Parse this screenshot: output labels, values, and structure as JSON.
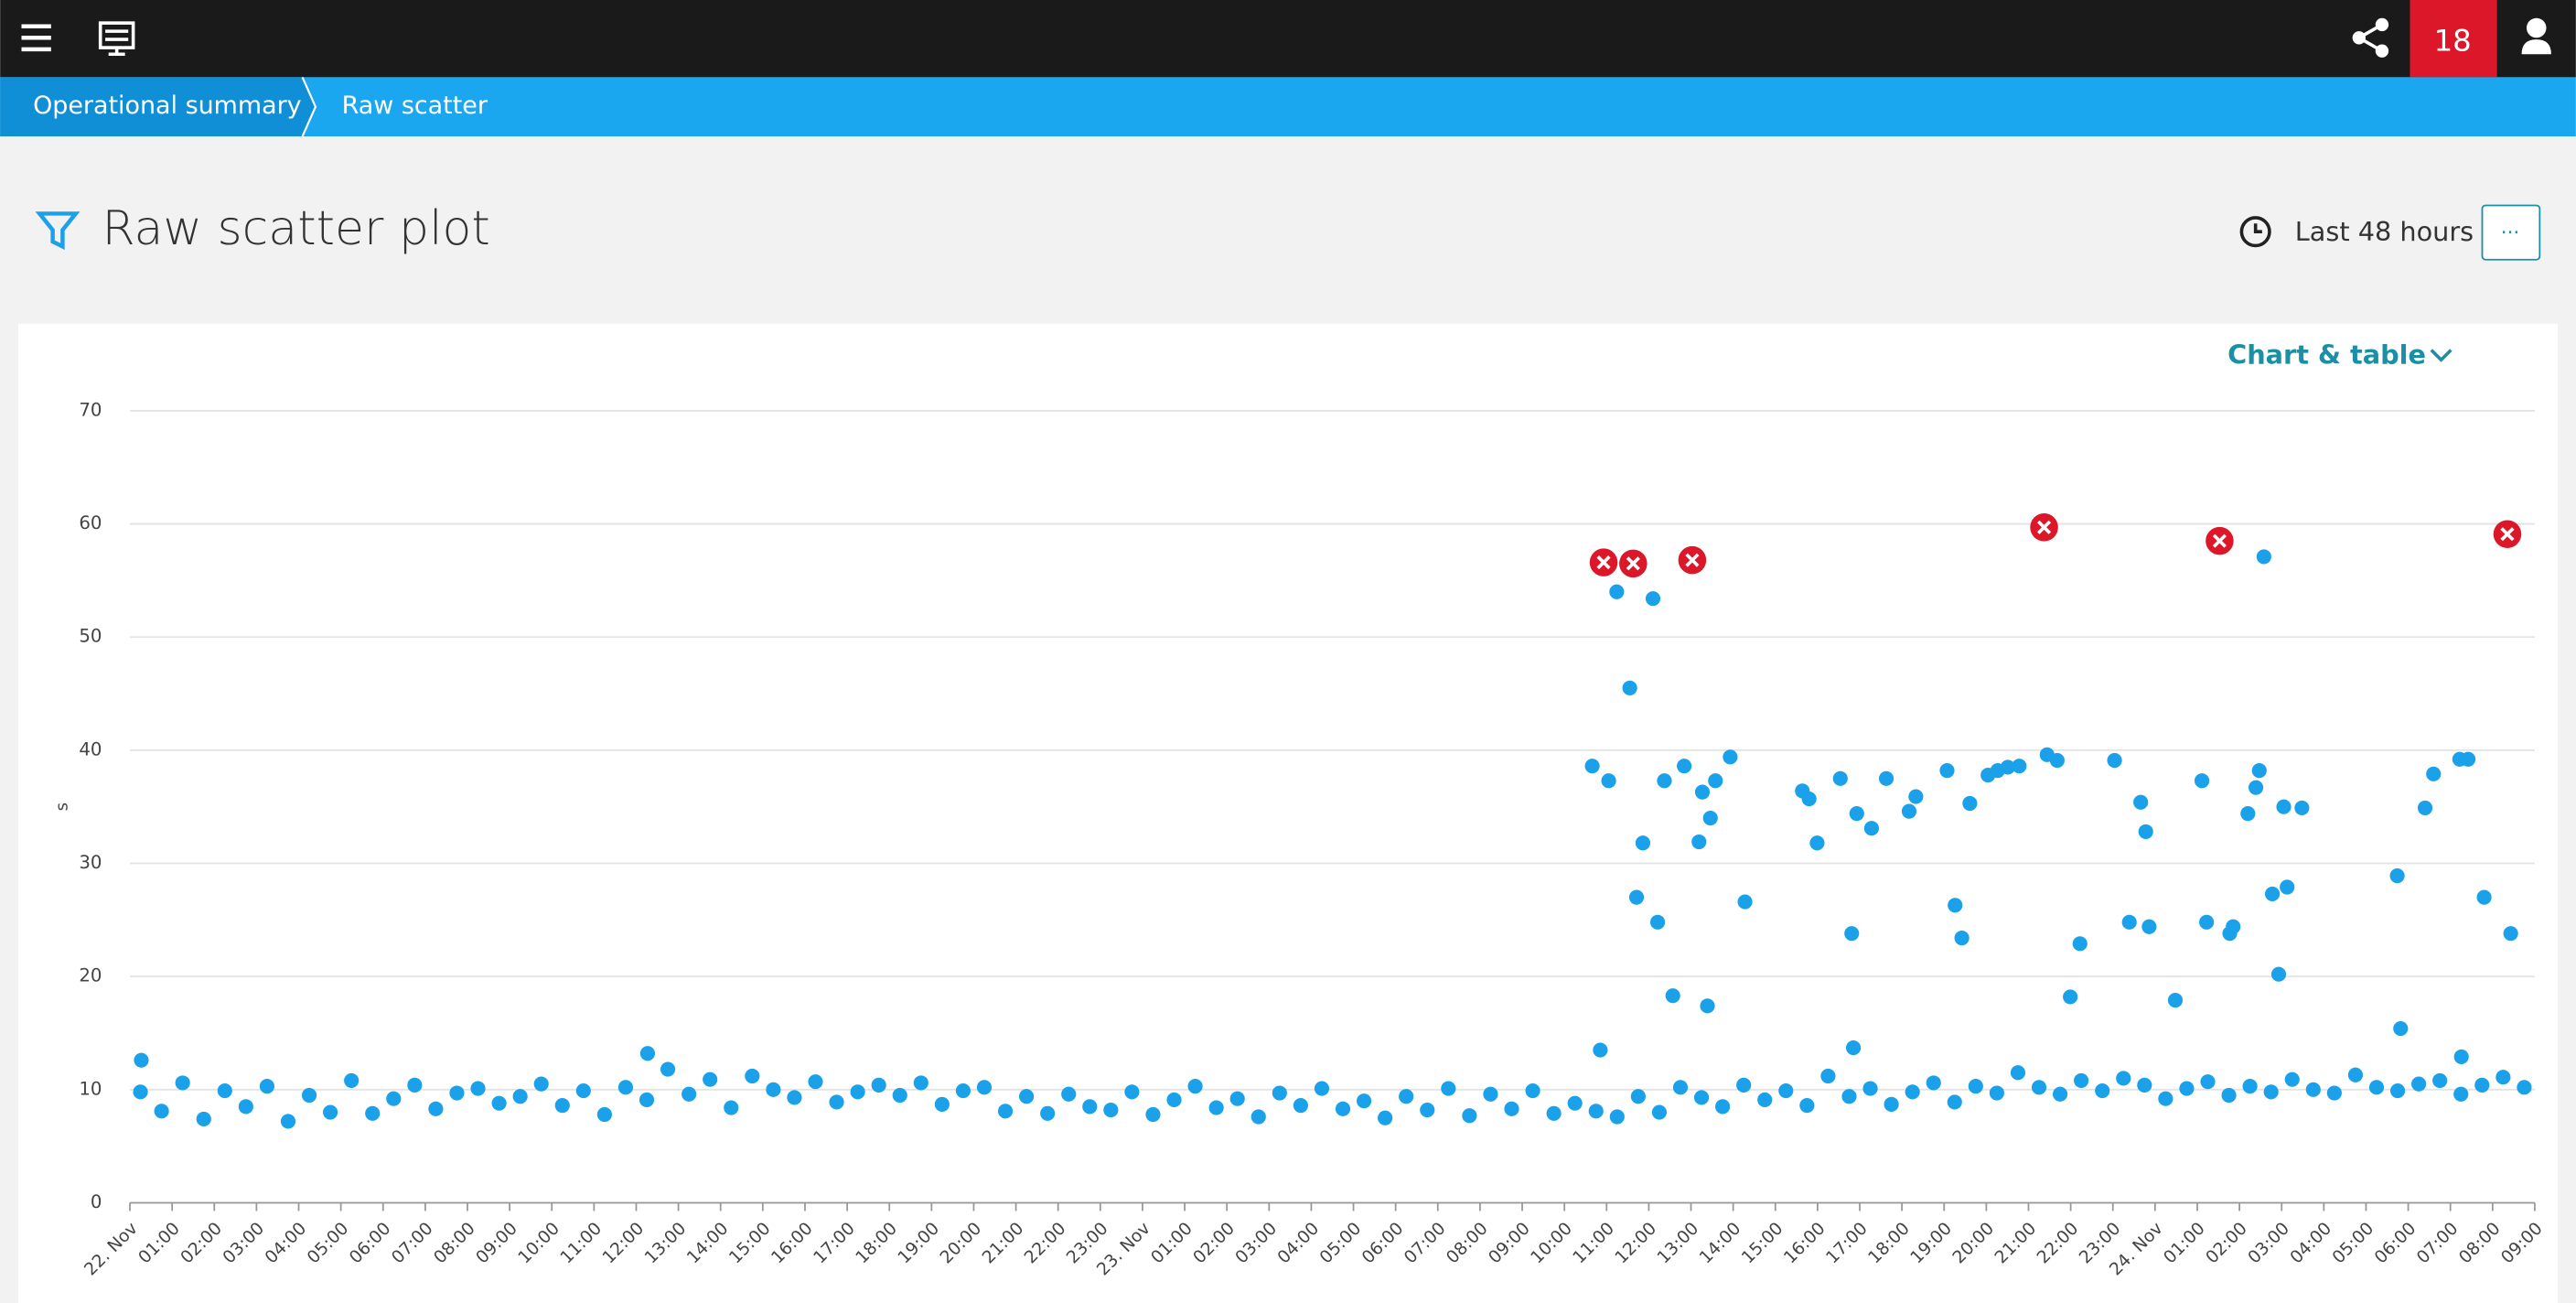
{
  "header": {
    "notification_count": "18"
  },
  "breadcrumb": [
    "Operational summary",
    "Raw scatter"
  ],
  "title": "Raw scatter plot",
  "time_range": "Last 48 hours",
  "menu_button": "···",
  "view_selector": "Chart & table",
  "chart_data": {
    "type": "scatter",
    "y_label": "s",
    "ylim": [
      0,
      70
    ],
    "yticks": [
      0,
      10,
      20,
      30,
      40,
      50,
      60,
      70
    ],
    "xlim": [
      0,
      57
    ],
    "xticks": [
      {
        "value": 0,
        "label": "22. Nov"
      },
      {
        "value": 1,
        "label": "01:00"
      },
      {
        "value": 2,
        "label": "02:00"
      },
      {
        "value": 3,
        "label": "03:00"
      },
      {
        "value": 4,
        "label": "04:00"
      },
      {
        "value": 5,
        "label": "05:00"
      },
      {
        "value": 6,
        "label": "06:00"
      },
      {
        "value": 7,
        "label": "07:00"
      },
      {
        "value": 8,
        "label": "08:00"
      },
      {
        "value": 9,
        "label": "09:00"
      },
      {
        "value": 10,
        "label": "10:00"
      },
      {
        "value": 11,
        "label": "11:00"
      },
      {
        "value": 12,
        "label": "12:00"
      },
      {
        "value": 13,
        "label": "13:00"
      },
      {
        "value": 14,
        "label": "14:00"
      },
      {
        "value": 15,
        "label": "15:00"
      },
      {
        "value": 16,
        "label": "16:00"
      },
      {
        "value": 17,
        "label": "17:00"
      },
      {
        "value": 18,
        "label": "18:00"
      },
      {
        "value": 19,
        "label": "19:00"
      },
      {
        "value": 20,
        "label": "20:00"
      },
      {
        "value": 21,
        "label": "21:00"
      },
      {
        "value": 22,
        "label": "22:00"
      },
      {
        "value": 23,
        "label": "23:00"
      },
      {
        "value": 24,
        "label": "23. Nov"
      },
      {
        "value": 25,
        "label": "01:00"
      },
      {
        "value": 26,
        "label": "02:00"
      },
      {
        "value": 27,
        "label": "03:00"
      },
      {
        "value": 28,
        "label": "04:00"
      },
      {
        "value": 29,
        "label": "05:00"
      },
      {
        "value": 30,
        "label": "06:00"
      },
      {
        "value": 31,
        "label": "07:00"
      },
      {
        "value": 32,
        "label": "08:00"
      },
      {
        "value": 33,
        "label": "09:00"
      },
      {
        "value": 34,
        "label": "10:00"
      },
      {
        "value": 35,
        "label": "11:00"
      },
      {
        "value": 36,
        "label": "12:00"
      },
      {
        "value": 37,
        "label": "13:00"
      },
      {
        "value": 38,
        "label": "14:00"
      },
      {
        "value": 39,
        "label": "15:00"
      },
      {
        "value": 40,
        "label": "16:00"
      },
      {
        "value": 41,
        "label": "17:00"
      },
      {
        "value": 42,
        "label": "18:00"
      },
      {
        "value": 43,
        "label": "19:00"
      },
      {
        "value": 44,
        "label": "20:00"
      },
      {
        "value": 45,
        "label": "21:00"
      },
      {
        "value": 46,
        "label": "22:00"
      },
      {
        "value": 47,
        "label": "23:00"
      },
      {
        "value": 48,
        "label": "24. Nov"
      },
      {
        "value": 49,
        "label": "01:00"
      },
      {
        "value": 50,
        "label": "02:00"
      },
      {
        "value": 51,
        "label": "03:00"
      },
      {
        "value": 52,
        "label": "04:00"
      },
      {
        "value": 53,
        "label": "05:00"
      },
      {
        "value": 54,
        "label": "06:00"
      },
      {
        "value": 55,
        "label": "07:00"
      },
      {
        "value": 56,
        "label": "08:00"
      },
      {
        "value": 57,
        "label": "09:00"
      }
    ],
    "grid": true,
    "series": [
      {
        "color": "#1ba1e9",
        "x": [
          0.25,
          0.75,
          1.25,
          1.75,
          2.25,
          2.75,
          3.25,
          3.75,
          4.25,
          4.75,
          5.25,
          5.75,
          6.25,
          6.75,
          7.25,
          7.75,
          8.25,
          8.75,
          9.25,
          9.75,
          10.25,
          10.75,
          11.25,
          11.75,
          12.25,
          12.75,
          13.25,
          13.75,
          14.25,
          14.75,
          15.25,
          15.75,
          16.25,
          16.75,
          17.25,
          17.75,
          18.25,
          18.75,
          19.25,
          19.75,
          20.25,
          20.75,
          21.25,
          21.75,
          22.25,
          22.75,
          23.25,
          23.75,
          24.25,
          24.75,
          25.25,
          25.75,
          26.25,
          26.75,
          27.25,
          27.75,
          28.25,
          28.75,
          29.25,
          29.75,
          30.25,
          30.75,
          31.25,
          31.75,
          32.25,
          32.75,
          33.25,
          33.75,
          34.25,
          34.75,
          35.25,
          35.75,
          36.25,
          36.75,
          37.25,
          37.75,
          38.25,
          38.75,
          39.25,
          39.75,
          40.25,
          40.75,
          41.25,
          41.75,
          42.25,
          42.75,
          43.25,
          43.75,
          44.25,
          44.75,
          45.25,
          45.75,
          46.25,
          46.75,
          47.25,
          47.75,
          48.25,
          48.75,
          49.25,
          49.75,
          50.25,
          50.75,
          51.25,
          51.75,
          52.25,
          52.75,
          53.25,
          53.75,
          54.25,
          54.75,
          55.25,
          55.75,
          56.25,
          56.75,
          34.85,
          40.85,
          55.26,
          12.27,
          0.27,
          34.66,
          35.05,
          35.24,
          35.55,
          35.71,
          35.86,
          36.1,
          36.21,
          36.37,
          36.57,
          36.84,
          37.19,
          37.27,
          37.39,
          37.46,
          37.58,
          37.93,
          38.28,
          39.64,
          39.8,
          39.99,
          40.54,
          40.81,
          40.93,
          41.28,
          41.63,
          42.17,
          42.33,
          43.07,
          43.26,
          43.42,
          43.61,
          44.04,
          44.27,
          44.51,
          44.78,
          45.44,
          45.68,
          45.99,
          46.22,
          47.04,
          47.39,
          47.66,
          47.78,
          47.86,
          48.48,
          49.11,
          49.22,
          49.77,
          49.85,
          50.2,
          50.39,
          50.47,
          50.58,
          50.78,
          50.93,
          51.05,
          51.13,
          51.48,
          53.74,
          53.82,
          54.4,
          54.6,
          55.22,
          55.42,
          55.8,
          56.43
        ],
        "values": [
          9.8,
          8.1,
          10.6,
          7.4,
          9.9,
          8.5,
          10.3,
          7.2,
          9.5,
          8.0,
          10.8,
          7.9,
          9.2,
          10.4,
          8.3,
          9.7,
          10.1,
          8.8,
          9.4,
          10.5,
          8.6,
          9.9,
          7.8,
          10.2,
          9.1,
          11.8,
          9.6,
          10.9,
          8.4,
          11.2,
          10.0,
          9.3,
          10.7,
          8.9,
          9.8,
          10.4,
          9.5,
          10.6,
          8.7,
          9.9,
          10.2,
          8.1,
          9.4,
          7.9,
          9.6,
          8.5,
          8.2,
          9.8,
          7.8,
          9.1,
          10.3,
          8.4,
          9.2,
          7.6,
          9.7,
          8.6,
          10.1,
          8.3,
          9.0,
          7.5,
          9.4,
          8.2,
          10.1,
          7.7,
          9.6,
          8.3,
          9.9,
          7.9,
          8.8,
          8.1,
          7.6,
          9.4,
          8.0,
          10.2,
          9.3,
          8.5,
          10.4,
          9.1,
          9.9,
          8.6,
          11.2,
          9.4,
          10.1,
          8.7,
          9.8,
          10.6,
          8.9,
          10.3,
          9.7,
          11.5,
          10.2,
          9.6,
          10.8,
          9.9,
          11.0,
          10.4,
          9.2,
          10.1,
          10.7,
          9.5,
          10.3,
          9.8,
          10.9,
          10.0,
          9.7,
          11.3,
          10.2,
          9.9,
          10.5,
          10.8,
          9.6,
          10.4,
          11.1,
          10.2,
          13.5,
          13.7,
          12.9,
          13.2,
          12.6,
          38.6,
          37.3,
          54.0,
          45.5,
          27.0,
          31.8,
          53.4,
          24.8,
          37.3,
          18.3,
          38.6,
          31.9,
          36.3,
          17.4,
          34.0,
          37.3,
          39.4,
          26.6,
          36.4,
          35.7,
          31.8,
          37.5,
          23.8,
          34.4,
          33.1,
          37.5,
          34.6,
          35.9,
          38.2,
          26.3,
          23.4,
          35.3,
          37.8,
          38.2,
          38.5,
          38.6,
          39.6,
          39.1,
          18.2,
          22.9,
          39.1,
          24.8,
          35.4,
          32.8,
          24.4,
          17.9,
          37.3,
          24.8,
          23.8,
          24.4,
          34.4,
          36.7,
          38.2,
          57.1,
          27.3,
          20.2,
          35.0,
          27.9,
          34.9,
          28.9,
          15.4,
          34.9,
          37.9,
          39.2,
          39.2,
          27.0,
          23.8
        ]
      },
      {
        "color": "#dc172a",
        "marker": "error",
        "x": [
          34.93,
          35.63,
          37.03,
          45.37,
          49.53,
          56.35
        ],
        "values": [
          56.6,
          56.5,
          56.8,
          59.7,
          58.5,
          59.1
        ]
      }
    ]
  }
}
